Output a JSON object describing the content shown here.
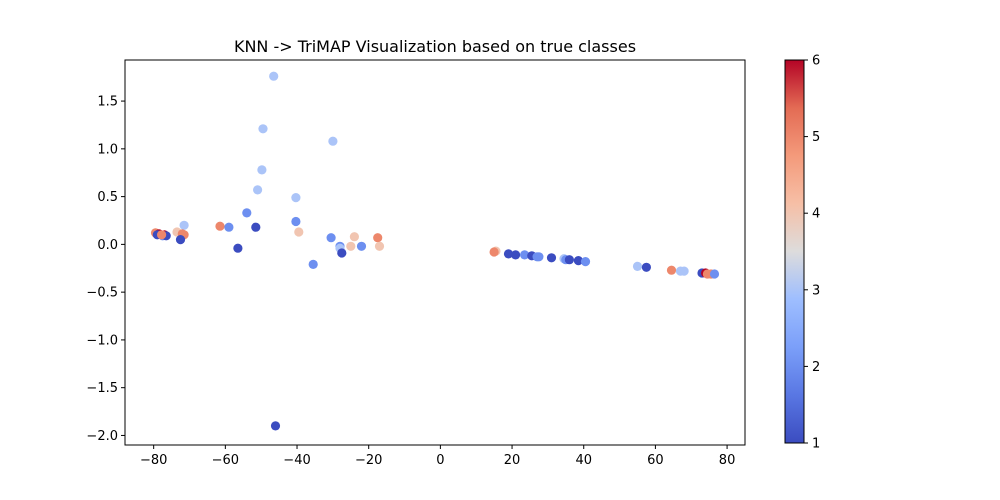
{
  "chart_data": {
    "type": "scatter",
    "title": "KNN -> TriMAP Visualization based on true classes",
    "xlabel": "",
    "ylabel": "",
    "xlim": [
      -88,
      85
    ],
    "ylim": [
      -2.1,
      1.93
    ],
    "xticks": [
      -80,
      -60,
      -40,
      -20,
      0,
      20,
      40,
      60,
      80
    ],
    "xtick_labels": [
      "−80",
      "−60",
      "−40",
      "−20",
      "0",
      "20",
      "40",
      "60",
      "80"
    ],
    "yticks": [
      -2.0,
      -1.5,
      -1.0,
      -0.5,
      0.0,
      0.5,
      1.0,
      1.5
    ],
    "ytick_labels": [
      "−2.0",
      "−1.5",
      "−1.0",
      "−0.5",
      "0.0",
      "0.5",
      "1.0",
      "1.5"
    ],
    "grid": false,
    "colormap": "coolwarm",
    "colorbar": {
      "min": 1,
      "max": 6,
      "ticks": [
        1,
        2,
        3,
        4,
        5,
        6
      ],
      "tick_labels": [
        "1",
        "2",
        "3",
        "4",
        "5",
        "6"
      ]
    },
    "points": [
      {
        "x": -46.5,
        "y": 1.76,
        "c": 3
      },
      {
        "x": -49.5,
        "y": 1.21,
        "c": 3
      },
      {
        "x": -30,
        "y": 1.08,
        "c": 3
      },
      {
        "x": -49.8,
        "y": 0.78,
        "c": 3
      },
      {
        "x": -51,
        "y": 0.57,
        "c": 3
      },
      {
        "x": -40.3,
        "y": 0.49,
        "c": 3
      },
      {
        "x": -54,
        "y": 0.33,
        "c": 2
      },
      {
        "x": -40.3,
        "y": 0.24,
        "c": 2
      },
      {
        "x": -71.5,
        "y": 0.2,
        "c": 3
      },
      {
        "x": -61.5,
        "y": 0.19,
        "c": 5
      },
      {
        "x": -59,
        "y": 0.18,
        "c": 2
      },
      {
        "x": -51.5,
        "y": 0.18,
        "c": 1
      },
      {
        "x": -79.5,
        "y": 0.12,
        "c": 5
      },
      {
        "x": -78.5,
        "y": 0.11,
        "c": 6
      },
      {
        "x": -77,
        "y": 0.1,
        "c": 6
      },
      {
        "x": -79,
        "y": 0.1,
        "c": 1
      },
      {
        "x": -77.5,
        "y": 0.09,
        "c": 2
      },
      {
        "x": -76.5,
        "y": 0.09,
        "c": 1
      },
      {
        "x": -77.8,
        "y": 0.1,
        "c": 5
      },
      {
        "x": -73.5,
        "y": 0.13,
        "c": 4
      },
      {
        "x": -72,
        "y": 0.11,
        "c": 5
      },
      {
        "x": -71.5,
        "y": 0.1,
        "c": 5
      },
      {
        "x": -72.5,
        "y": 0.05,
        "c": 1
      },
      {
        "x": -39.5,
        "y": 0.13,
        "c": 4
      },
      {
        "x": -56.5,
        "y": -0.04,
        "c": 1
      },
      {
        "x": -30.5,
        "y": 0.07,
        "c": 2
      },
      {
        "x": -24,
        "y": 0.08,
        "c": 4
      },
      {
        "x": -17.5,
        "y": 0.07,
        "c": 5
      },
      {
        "x": -28,
        "y": -0.02,
        "c": 2
      },
      {
        "x": -28,
        "y": -0.04,
        "c": 3
      },
      {
        "x": -25,
        "y": -0.02,
        "c": 4
      },
      {
        "x": -22,
        "y": -0.02,
        "c": 2
      },
      {
        "x": -17,
        "y": -0.02,
        "c": 4
      },
      {
        "x": -27.5,
        "y": -0.09,
        "c": 1
      },
      {
        "x": -35.5,
        "y": -0.21,
        "c": 2
      },
      {
        "x": -46,
        "y": -1.9,
        "c": 1
      },
      {
        "x": 15.5,
        "y": -0.07,
        "c": 4
      },
      {
        "x": 15,
        "y": -0.08,
        "c": 5
      },
      {
        "x": 19,
        "y": -0.1,
        "c": 1
      },
      {
        "x": 21,
        "y": -0.11,
        "c": 1
      },
      {
        "x": 23.5,
        "y": -0.11,
        "c": 2
      },
      {
        "x": 25.5,
        "y": -0.12,
        "c": 1
      },
      {
        "x": 27,
        "y": -0.13,
        "c": 2
      },
      {
        "x": 27.5,
        "y": -0.13,
        "c": 2
      },
      {
        "x": 31,
        "y": -0.14,
        "c": 1
      },
      {
        "x": 34.5,
        "y": -0.15,
        "c": 3
      },
      {
        "x": 35,
        "y": -0.16,
        "c": 2
      },
      {
        "x": 36,
        "y": -0.16,
        "c": 1
      },
      {
        "x": 38.5,
        "y": -0.17,
        "c": 1
      },
      {
        "x": 40.5,
        "y": -0.18,
        "c": 2
      },
      {
        "x": 55,
        "y": -0.23,
        "c": 3
      },
      {
        "x": 57.5,
        "y": -0.24,
        "c": 1
      },
      {
        "x": 64.5,
        "y": -0.27,
        "c": 5
      },
      {
        "x": 67,
        "y": -0.28,
        "c": 3
      },
      {
        "x": 68,
        "y": -0.28,
        "c": 3
      },
      {
        "x": 73,
        "y": -0.3,
        "c": 1
      },
      {
        "x": 74,
        "y": -0.3,
        "c": 6
      },
      {
        "x": 74.5,
        "y": -0.31,
        "c": 5
      },
      {
        "x": 75.5,
        "y": -0.31,
        "c": 5
      },
      {
        "x": 76.5,
        "y": -0.31,
        "c": 2
      }
    ]
  }
}
